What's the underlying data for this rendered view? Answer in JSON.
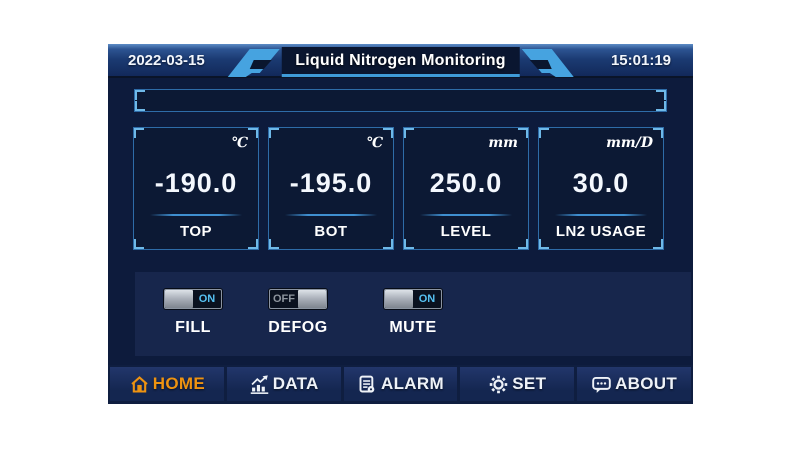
{
  "header": {
    "date": "2022-03-15",
    "title": "Liquid Nitrogen Monitoring",
    "time": "15:01:19"
  },
  "level_bar": {
    "fill_percent": 0
  },
  "cards": [
    {
      "unit": "℃",
      "value": "-190.0",
      "label": "TOP"
    },
    {
      "unit": "℃",
      "value": "-195.0",
      "label": "BOT"
    },
    {
      "unit": "mm",
      "value": "250.0",
      "label": "LEVEL"
    },
    {
      "unit": "mm/D",
      "value": "30.0",
      "label": "LN2 USAGE"
    }
  ],
  "switches": [
    {
      "label": "FILL",
      "state": "ON"
    },
    {
      "label": "DEFOG",
      "state": "OFF"
    },
    {
      "label": "MUTE",
      "state": "ON"
    }
  ],
  "nav": [
    {
      "label": "HOME",
      "icon": "home-icon",
      "active": true
    },
    {
      "label": "DATA",
      "icon": "data-chart-icon",
      "active": false
    },
    {
      "label": "ALARM",
      "icon": "alarm-list-icon",
      "active": false
    },
    {
      "label": "SET",
      "icon": "gear-icon",
      "active": false
    },
    {
      "label": "ABOUT",
      "icon": "speech-bubble-icon",
      "active": false
    }
  ],
  "colors": {
    "panel_bg": "#0d1b3c",
    "accent_blue": "#3f9bd8",
    "corner_accent": "#6fb9e8",
    "active_orange": "#ee9311",
    "on_text": "#56c1f2",
    "off_text": "#8e959e"
  }
}
